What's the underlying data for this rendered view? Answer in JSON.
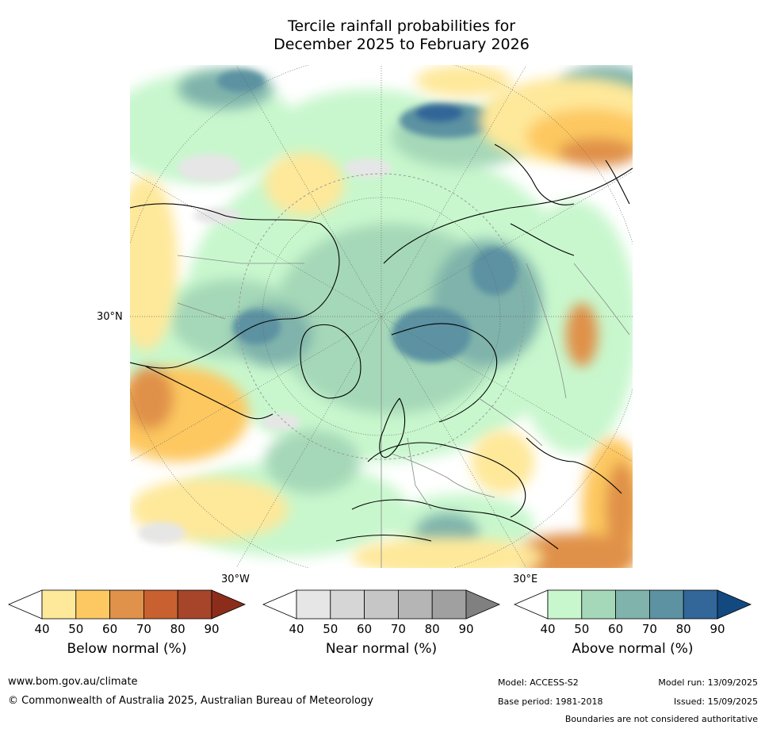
{
  "title_line1": "Tercile rainfall probabilities for",
  "title_line2": "December 2025 to February 2026",
  "labels": {
    "lat_30n": "30°N",
    "lon_30w": "30°W",
    "lon_30e": "30°E"
  },
  "colorbars": [
    {
      "title": "Below normal (%)",
      "ticks": [
        "40",
        "50",
        "60",
        "70",
        "80",
        "90"
      ],
      "colors": [
        "#ffffff",
        "#fee89a",
        "#fdc861",
        "#e0914a",
        "#c8612f",
        "#a64529",
        "#8c2d1c"
      ]
    },
    {
      "title": "Near normal (%)",
      "ticks": [
        "40",
        "50",
        "60",
        "70",
        "80",
        "90"
      ],
      "colors": [
        "#ffffff",
        "#e6e6e6",
        "#d6d6d6",
        "#c6c6c6",
        "#b5b5b5",
        "#a0a0a0",
        "#808080"
      ]
    },
    {
      "title": "Above normal (%)",
      "ticks": [
        "40",
        "50",
        "60",
        "70",
        "80",
        "90"
      ],
      "colors": [
        "#ffffff",
        "#c8f7cd",
        "#a5d8b8",
        "#7fb3ab",
        "#5c92a2",
        "#336699",
        "#124a80"
      ]
    }
  ],
  "footer": {
    "website": "www.bom.gov.au/climate",
    "copyright": "© Commonwealth of Australia 2025, Australian Bureau of Meteorology",
    "model": "Model: ACCESS-S2",
    "base_period": "Base period: 1981-2018",
    "model_run": "Model run: 13/09/2025",
    "issued": "Issued: 15/09/2025",
    "disclaimer": "Boundaries are not considered authoritative"
  }
}
